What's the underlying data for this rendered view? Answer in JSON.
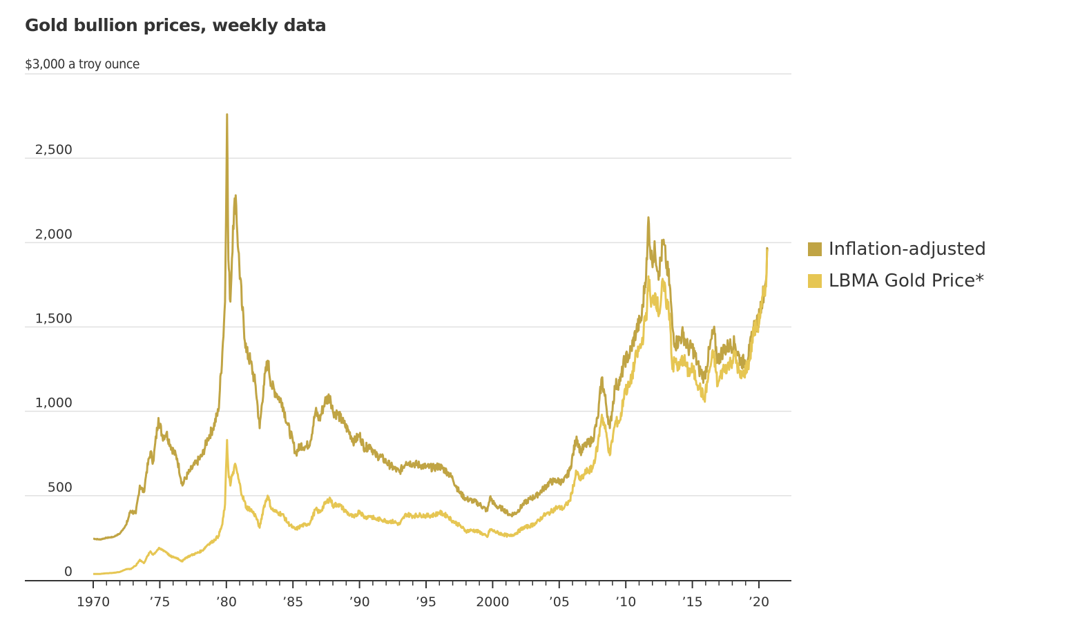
{
  "chart_data": {
    "type": "line",
    "title": "Gold bullion prices, weekly data",
    "ylabel": "$3,000 a troy ounce",
    "xlabel": "",
    "ylim": [
      0,
      3000
    ],
    "xlim": [
      1970,
      2020.9
    ],
    "grid": true,
    "legend_position": "right",
    "y_ticks": [
      {
        "value": 0,
        "label": "0"
      },
      {
        "value": 500,
        "label": "500"
      },
      {
        "value": 1000,
        "label": "1,000"
      },
      {
        "value": 1500,
        "label": "1,500"
      },
      {
        "value": 2000,
        "label": "2,000"
      },
      {
        "value": 2500,
        "label": "2,500"
      }
    ],
    "x_ticks": [
      {
        "value": 1970,
        "label": "1970"
      },
      {
        "value": 1975,
        "label": "’75"
      },
      {
        "value": 1980,
        "label": "’80"
      },
      {
        "value": 1985,
        "label": "’85"
      },
      {
        "value": 1990,
        "label": "’90"
      },
      {
        "value": 1995,
        "label": "’95"
      },
      {
        "value": 2000,
        "label": "2000"
      },
      {
        "value": 2005,
        "label": "’05"
      },
      {
        "value": 2010,
        "label": "’10"
      },
      {
        "value": 2015,
        "label": "’15"
      },
      {
        "value": 2020,
        "label": "’20"
      }
    ],
    "series": [
      {
        "name": "Inflation-adjusted",
        "color": "#C0A444",
        "points": [
          [
            1970.0,
            245
          ],
          [
            1970.5,
            240
          ],
          [
            1971.0,
            250
          ],
          [
            1971.5,
            255
          ],
          [
            1972.0,
            275
          ],
          [
            1972.5,
            330
          ],
          [
            1972.8,
            410
          ],
          [
            1973.2,
            395
          ],
          [
            1973.5,
            560
          ],
          [
            1973.8,
            520
          ],
          [
            1974.0,
            640
          ],
          [
            1974.3,
            760
          ],
          [
            1974.5,
            700
          ],
          [
            1974.9,
            960
          ],
          [
            1975.2,
            850
          ],
          [
            1975.5,
            870
          ],
          [
            1975.8,
            800
          ],
          [
            1976.3,
            720
          ],
          [
            1976.7,
            560
          ],
          [
            1976.9,
            600
          ],
          [
            1977.3,
            650
          ],
          [
            1977.8,
            700
          ],
          [
            1978.2,
            740
          ],
          [
            1978.6,
            840
          ],
          [
            1979.0,
            900
          ],
          [
            1979.4,
            1000
          ],
          [
            1979.7,
            1350
          ],
          [
            1979.9,
            1650
          ],
          [
            1980.05,
            2760
          ],
          [
            1980.15,
            1900
          ],
          [
            1980.3,
            1650
          ],
          [
            1980.5,
            2100
          ],
          [
            1980.7,
            2280
          ],
          [
            1980.9,
            1950
          ],
          [
            1981.2,
            1600
          ],
          [
            1981.5,
            1350
          ],
          [
            1981.8,
            1300
          ],
          [
            1982.2,
            1150
          ],
          [
            1982.5,
            900
          ],
          [
            1982.8,
            1150
          ],
          [
            1983.1,
            1300
          ],
          [
            1983.4,
            1150
          ],
          [
            1983.8,
            1100
          ],
          [
            1984.2,
            1050
          ],
          [
            1984.6,
            920
          ],
          [
            1985.0,
            820
          ],
          [
            1985.2,
            750
          ],
          [
            1985.6,
            800
          ],
          [
            1986.0,
            790
          ],
          [
            1986.3,
            820
          ],
          [
            1986.7,
            1000
          ],
          [
            1987.0,
            950
          ],
          [
            1987.4,
            1060
          ],
          [
            1987.8,
            1090
          ],
          [
            1988.0,
            1000
          ],
          [
            1988.4,
            980
          ],
          [
            1988.8,
            930
          ],
          [
            1989.2,
            880
          ],
          [
            1989.6,
            820
          ],
          [
            1990.0,
            860
          ],
          [
            1990.4,
            780
          ],
          [
            1990.8,
            800
          ],
          [
            1991.2,
            740
          ],
          [
            1991.6,
            730
          ],
          [
            1992.0,
            700
          ],
          [
            1992.6,
            660
          ],
          [
            1993.0,
            640
          ],
          [
            1993.5,
            700
          ],
          [
            1994.0,
            690
          ],
          [
            1994.6,
            680
          ],
          [
            1995.0,
            670
          ],
          [
            1995.6,
            665
          ],
          [
            1996.0,
            675
          ],
          [
            1996.6,
            640
          ],
          [
            1997.0,
            600
          ],
          [
            1997.5,
            520
          ],
          [
            1998.0,
            480
          ],
          [
            1998.5,
            470
          ],
          [
            1999.0,
            450
          ],
          [
            1999.6,
            410
          ],
          [
            1999.8,
            490
          ],
          [
            2000.2,
            440
          ],
          [
            2000.8,
            420
          ],
          [
            2001.3,
            385
          ],
          [
            2001.8,
            400
          ],
          [
            2002.3,
            450
          ],
          [
            2002.8,
            480
          ],
          [
            2003.3,
            500
          ],
          [
            2003.8,
            540
          ],
          [
            2004.3,
            580
          ],
          [
            2004.8,
            590
          ],
          [
            2005.3,
            580
          ],
          [
            2005.8,
            650
          ],
          [
            2006.3,
            850
          ],
          [
            2006.6,
            760
          ],
          [
            2007.0,
            800
          ],
          [
            2007.5,
            830
          ],
          [
            2007.9,
            960
          ],
          [
            2008.2,
            1200
          ],
          [
            2008.5,
            1050
          ],
          [
            2008.8,
            900
          ],
          [
            2009.2,
            1150
          ],
          [
            2009.6,
            1180
          ],
          [
            2009.9,
            1300
          ],
          [
            2010.3,
            1340
          ],
          [
            2010.8,
            1480
          ],
          [
            2011.2,
            1560
          ],
          [
            2011.6,
            1900
          ],
          [
            2011.7,
            2150
          ],
          [
            2011.9,
            1900
          ],
          [
            2012.2,
            1950
          ],
          [
            2012.5,
            1820
          ],
          [
            2012.8,
            2000
          ],
          [
            2013.0,
            1900
          ],
          [
            2013.3,
            1750
          ],
          [
            2013.5,
            1500
          ],
          [
            2013.7,
            1400
          ],
          [
            2014.0,
            1420
          ],
          [
            2014.3,
            1460
          ],
          [
            2014.7,
            1370
          ],
          [
            2015.0,
            1380
          ],
          [
            2015.5,
            1250
          ],
          [
            2015.9,
            1200
          ],
          [
            2016.3,
            1370
          ],
          [
            2016.6,
            1480
          ],
          [
            2016.9,
            1300
          ],
          [
            2017.3,
            1360
          ],
          [
            2017.8,
            1390
          ],
          [
            2018.2,
            1400
          ],
          [
            2018.6,
            1300
          ],
          [
            2018.9,
            1290
          ],
          [
            2019.3,
            1360
          ],
          [
            2019.6,
            1500
          ],
          [
            2019.9,
            1520
          ],
          [
            2020.2,
            1650
          ],
          [
            2020.5,
            1760
          ],
          [
            2020.65,
            1960
          ]
        ]
      },
      {
        "name": "LBMA Gold Price*",
        "color": "#E6C653",
        "points": [
          [
            1970.0,
            36
          ],
          [
            1970.5,
            36
          ],
          [
            1971.0,
            40
          ],
          [
            1971.5,
            42
          ],
          [
            1972.0,
            48
          ],
          [
            1972.5,
            65
          ],
          [
            1972.8,
            65
          ],
          [
            1973.2,
            85
          ],
          [
            1973.5,
            120
          ],
          [
            1973.8,
            100
          ],
          [
            1974.0,
            130
          ],
          [
            1974.3,
            170
          ],
          [
            1974.5,
            150
          ],
          [
            1974.9,
            185
          ],
          [
            1975.2,
            180
          ],
          [
            1975.5,
            165
          ],
          [
            1975.8,
            140
          ],
          [
            1976.3,
            130
          ],
          [
            1976.7,
            110
          ],
          [
            1976.9,
            130
          ],
          [
            1977.3,
            145
          ],
          [
            1977.8,
            160
          ],
          [
            1978.2,
            175
          ],
          [
            1978.6,
            210
          ],
          [
            1979.0,
            230
          ],
          [
            1979.4,
            260
          ],
          [
            1979.7,
            330
          ],
          [
            1979.9,
            450
          ],
          [
            1980.05,
            830
          ],
          [
            1980.15,
            650
          ],
          [
            1980.3,
            560
          ],
          [
            1980.5,
            640
          ],
          [
            1980.7,
            680
          ],
          [
            1980.9,
            600
          ],
          [
            1981.2,
            500
          ],
          [
            1981.5,
            430
          ],
          [
            1981.8,
            420
          ],
          [
            1982.2,
            380
          ],
          [
            1982.5,
            310
          ],
          [
            1982.8,
            430
          ],
          [
            1983.1,
            500
          ],
          [
            1983.4,
            420
          ],
          [
            1983.8,
            400
          ],
          [
            1984.2,
            390
          ],
          [
            1984.6,
            340
          ],
          [
            1985.0,
            310
          ],
          [
            1985.2,
            300
          ],
          [
            1985.6,
            320
          ],
          [
            1986.0,
            330
          ],
          [
            1986.3,
            340
          ],
          [
            1986.7,
            420
          ],
          [
            1987.0,
            400
          ],
          [
            1987.4,
            450
          ],
          [
            1987.8,
            485
          ],
          [
            1988.0,
            440
          ],
          [
            1988.4,
            450
          ],
          [
            1988.8,
            420
          ],
          [
            1989.2,
            390
          ],
          [
            1989.6,
            370
          ],
          [
            1990.0,
            410
          ],
          [
            1990.4,
            370
          ],
          [
            1990.8,
            380
          ],
          [
            1991.2,
            360
          ],
          [
            1991.6,
            360
          ],
          [
            1992.0,
            350
          ],
          [
            1992.6,
            345
          ],
          [
            1993.0,
            330
          ],
          [
            1993.5,
            390
          ],
          [
            1994.0,
            380
          ],
          [
            1994.6,
            385
          ],
          [
            1995.0,
            380
          ],
          [
            1995.6,
            385
          ],
          [
            1996.0,
            400
          ],
          [
            1996.6,
            380
          ],
          [
            1997.0,
            350
          ],
          [
            1997.5,
            325
          ],
          [
            1998.0,
            290
          ],
          [
            1998.5,
            295
          ],
          [
            1999.0,
            285
          ],
          [
            1999.6,
            255
          ],
          [
            1999.8,
            300
          ],
          [
            2000.2,
            285
          ],
          [
            2000.8,
            270
          ],
          [
            2001.3,
            260
          ],
          [
            2001.8,
            280
          ],
          [
            2002.3,
            310
          ],
          [
            2002.8,
            320
          ],
          [
            2003.3,
            340
          ],
          [
            2003.8,
            380
          ],
          [
            2004.3,
            400
          ],
          [
            2004.8,
            430
          ],
          [
            2005.3,
            425
          ],
          [
            2005.8,
            470
          ],
          [
            2006.3,
            640
          ],
          [
            2006.6,
            590
          ],
          [
            2007.0,
            640
          ],
          [
            2007.5,
            660
          ],
          [
            2007.9,
            800
          ],
          [
            2008.2,
            980
          ],
          [
            2008.5,
            880
          ],
          [
            2008.8,
            740
          ],
          [
            2009.2,
            930
          ],
          [
            2009.6,
            950
          ],
          [
            2009.9,
            1120
          ],
          [
            2010.3,
            1150
          ],
          [
            2010.8,
            1330
          ],
          [
            2011.2,
            1400
          ],
          [
            2011.6,
            1620
          ],
          [
            2011.7,
            1800
          ],
          [
            2011.9,
            1620
          ],
          [
            2012.2,
            1700
          ],
          [
            2012.5,
            1580
          ],
          [
            2012.8,
            1760
          ],
          [
            2013.0,
            1670
          ],
          [
            2013.3,
            1580
          ],
          [
            2013.5,
            1250
          ],
          [
            2013.7,
            1300
          ],
          [
            2014.0,
            1250
          ],
          [
            2014.3,
            1320
          ],
          [
            2014.7,
            1230
          ],
          [
            2015.0,
            1250
          ],
          [
            2015.5,
            1150
          ],
          [
            2015.9,
            1070
          ],
          [
            2016.3,
            1250
          ],
          [
            2016.6,
            1350
          ],
          [
            2016.9,
            1150
          ],
          [
            2017.3,
            1250
          ],
          [
            2017.8,
            1280
          ],
          [
            2018.2,
            1330
          ],
          [
            2018.6,
            1200
          ],
          [
            2018.9,
            1230
          ],
          [
            2019.3,
            1300
          ],
          [
            2019.6,
            1480
          ],
          [
            2019.9,
            1500
          ],
          [
            2020.2,
            1620
          ],
          [
            2020.5,
            1740
          ],
          [
            2020.65,
            1960
          ]
        ]
      }
    ]
  }
}
